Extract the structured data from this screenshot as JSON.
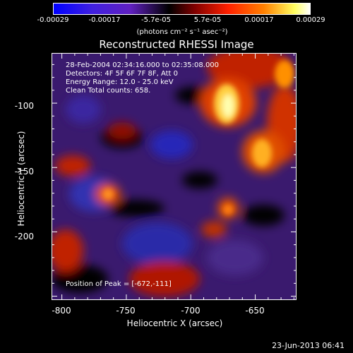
{
  "colorbar": {
    "ticks": [
      "-0.00029",
      "-0.00017",
      "-5.7e-05",
      "5.7e-05",
      "0.00017",
      "0.00029"
    ],
    "units": "(photons cm⁻² s⁻¹ asec⁻²)"
  },
  "image": {
    "title": "Reconstructed RHESSI Image",
    "info_lines": [
      "28-Feb-2004 02:34:16.000 to 02:35:08.000",
      "Detectors: 4F 5F 6F 7F 8F, Att 0",
      "Energy Range: 12.0 - 25.0 keV",
      "Clean    Total counts: 658."
    ],
    "peak_text": "Position of Peak = [-672,-111]"
  },
  "axes": {
    "xlabel": "Heliocentric X (arcsec)",
    "ylabel": "Heliocentric Y (arcsec)",
    "xticks": [
      "-800",
      "-750",
      "-700",
      "-650"
    ],
    "yticks": [
      "-100",
      "-150",
      "-200"
    ],
    "xlim": [
      -808,
      -618
    ],
    "ylim": [
      -253,
      -61
    ]
  },
  "footer": {
    "date": "23-Jun-2013 06:41"
  }
}
